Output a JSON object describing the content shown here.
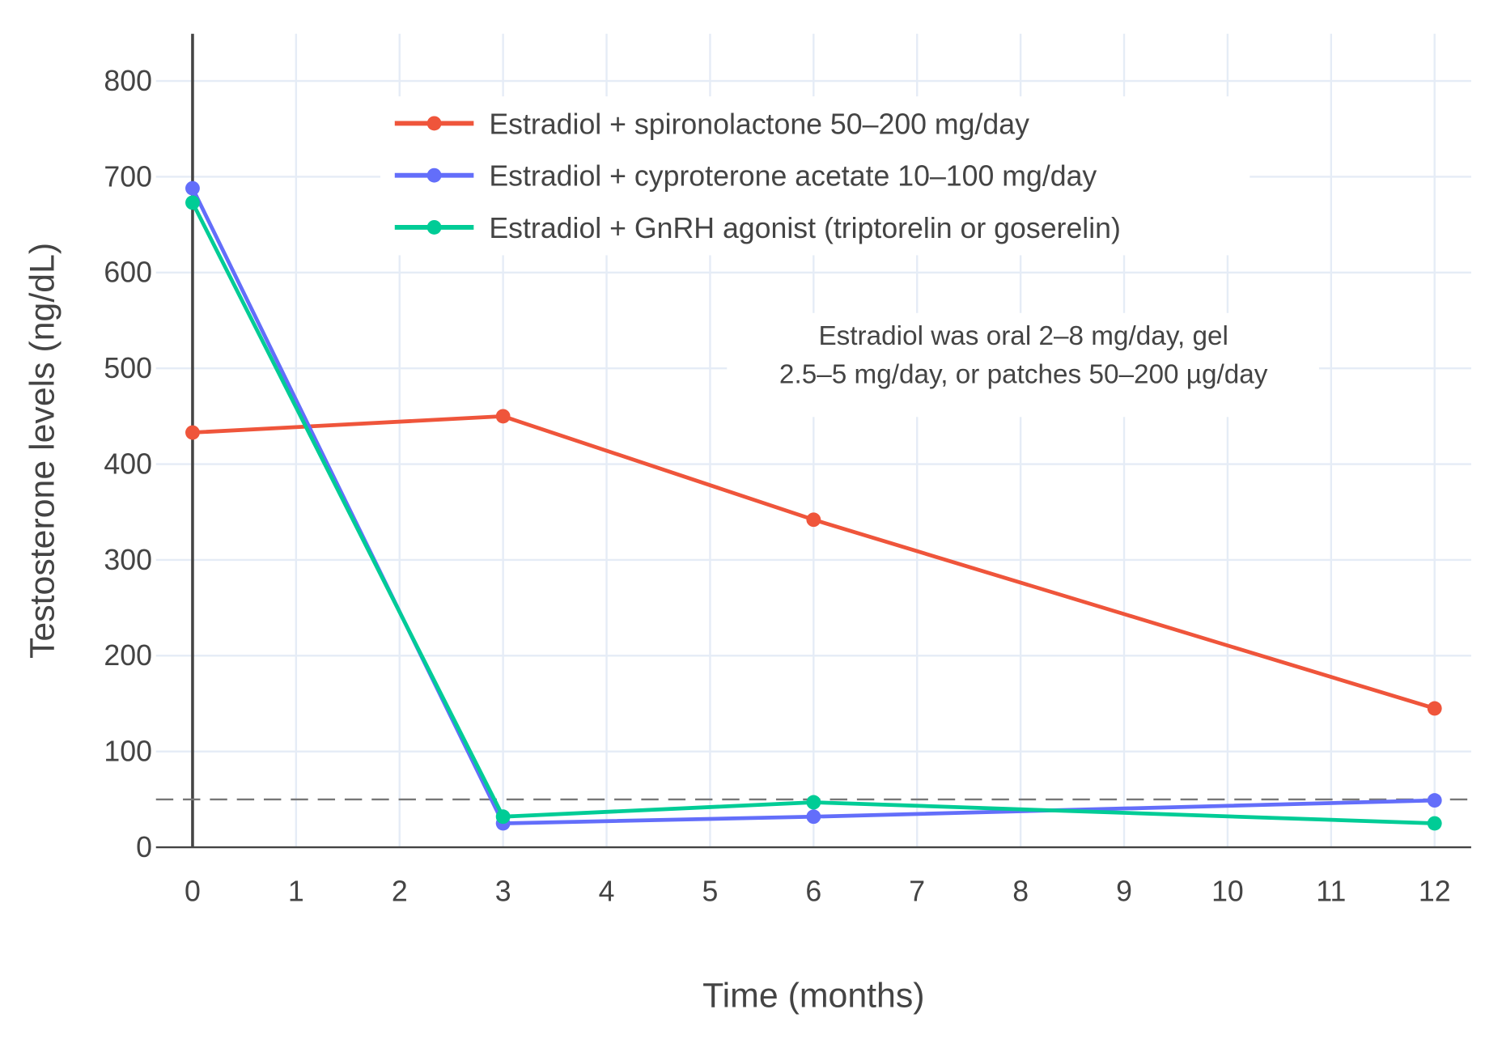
{
  "chart_data": {
    "type": "line",
    "title": "",
    "xlabel": "Time (months)",
    "ylabel": "Testosterone levels (ng/dL)",
    "xlim": [
      -0.35,
      12.35
    ],
    "ylim": [
      0,
      850
    ],
    "xticks": [
      0,
      1,
      2,
      3,
      4,
      5,
      6,
      7,
      8,
      9,
      10,
      11,
      12
    ],
    "yticks": [
      0,
      100,
      200,
      300,
      400,
      500,
      600,
      700,
      800
    ],
    "grid": true,
    "legend_placement": "top-center",
    "x": [
      0,
      3,
      6,
      12
    ],
    "series": [
      {
        "name": "Estradiol + spironolactone 50–200 mg/day",
        "color": "#EF553B",
        "values": [
          433,
          450,
          342,
          145
        ]
      },
      {
        "name": "Estradiol + cyproterone acetate 10–100 mg/day",
        "color": "#636EFA",
        "values": [
          688,
          25,
          32,
          49
        ]
      },
      {
        "name": "Estradiol + GnRH agonist (triptorelin or goserelin)",
        "color": "#00CC96",
        "values": [
          673,
          32,
          47,
          25
        ]
      }
    ],
    "reference_line": {
      "y": 50,
      "style": "dashed",
      "color": "#777777"
    },
    "annotation": [
      "Estradiol was oral 2–8 mg/day, gel",
      "2.5–5 mg/day, or patches 50–200 µg/day"
    ]
  }
}
